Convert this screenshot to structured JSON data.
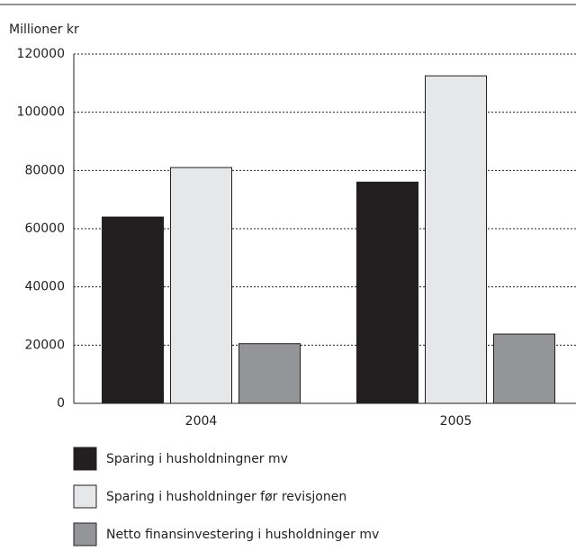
{
  "chart_data": {
    "type": "bar",
    "y_axis_label": "Millioner kr",
    "categories": [
      "2004",
      "2005"
    ],
    "series": [
      {
        "name": "Sparing i husholdningner mv",
        "color": "#231f20",
        "values": [
          64000,
          76000
        ]
      },
      {
        "name": "Sparing i husholdninger før revisjonen",
        "color": "#e6e7e8",
        "values": [
          81000,
          112500
        ]
      },
      {
        "name": "Netto finansinvestering i husholdninger mv",
        "color": "#939598",
        "values": [
          20500,
          23800
        ]
      }
    ],
    "ylim": [
      0,
      120000
    ],
    "yticks": [
      0,
      20000,
      40000,
      60000,
      80000,
      100000,
      120000
    ],
    "grid": true
  }
}
